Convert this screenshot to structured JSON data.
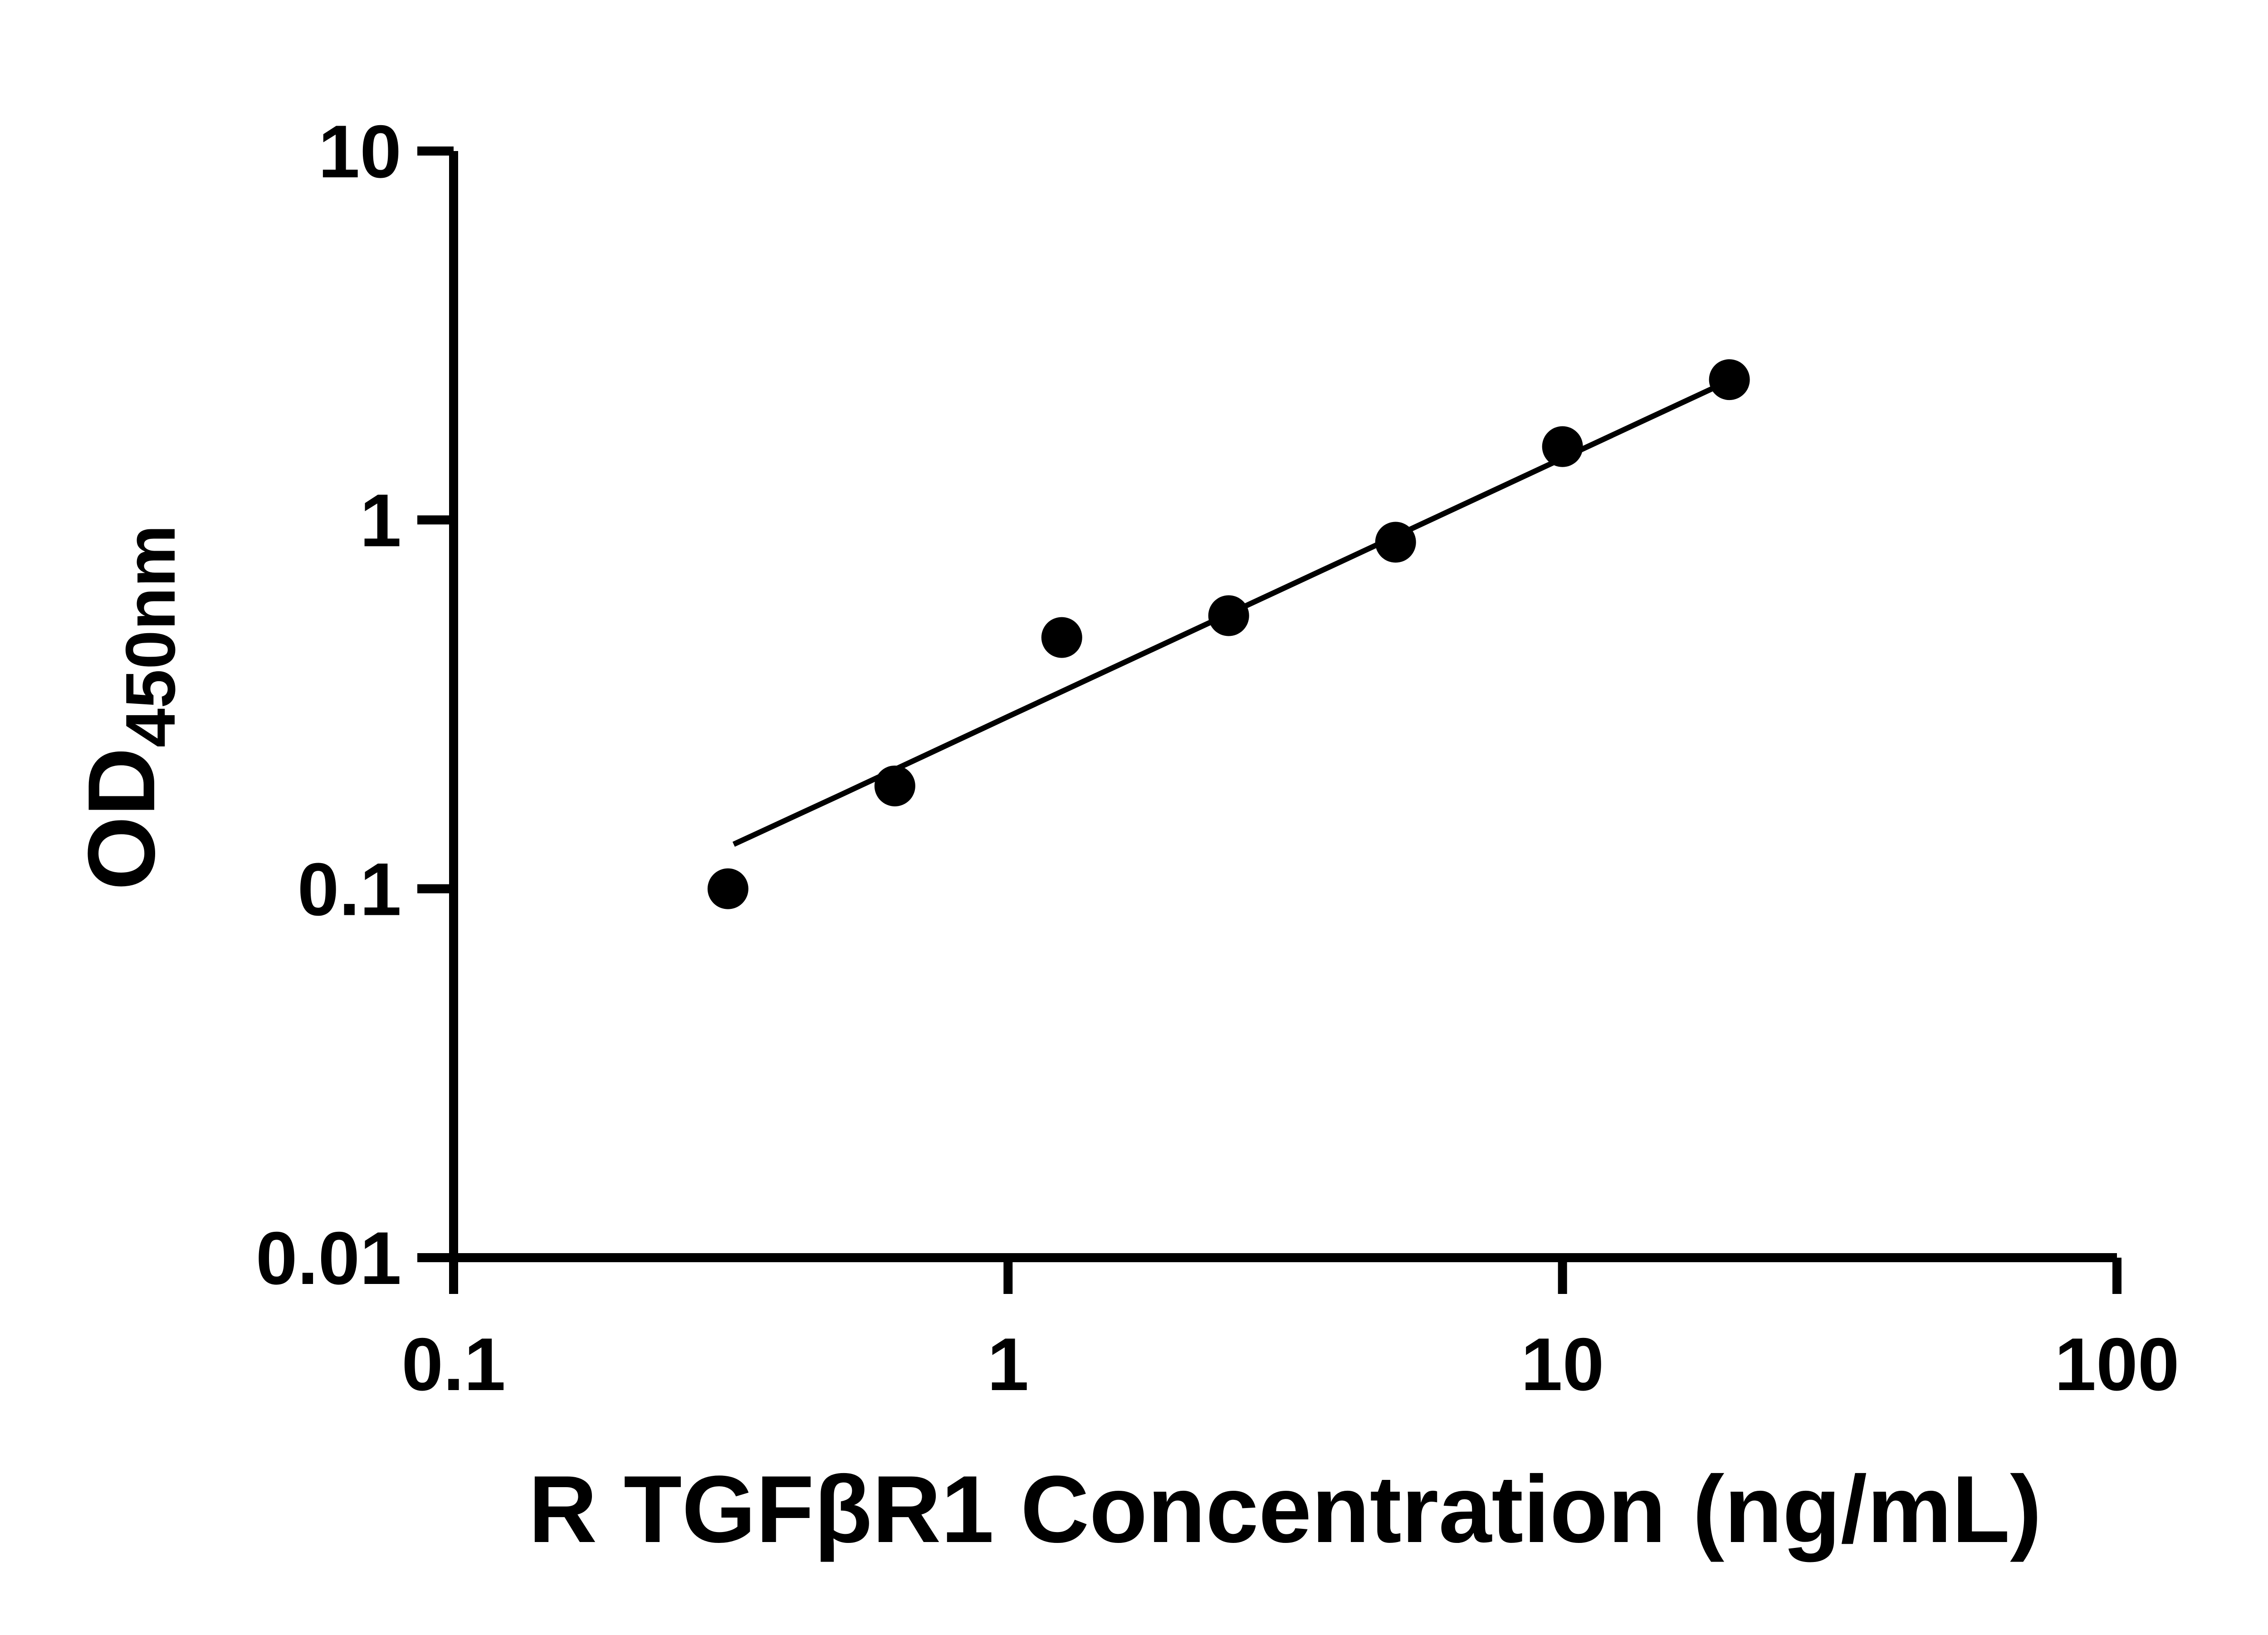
{
  "figure": {
    "background_color": "#ffffff",
    "ink_color": "#000000"
  },
  "chart_data": {
    "type": "scatter",
    "title": "",
    "legend": "none",
    "grid": "off",
    "x_axis": {
      "label": "R TGFβR1 Concentration (ng/mL)",
      "scale": "log",
      "min": 0.1,
      "max": 100,
      "ticks": [
        0.1,
        1,
        10,
        100
      ],
      "tick_labels": [
        "0.1",
        "1",
        "10",
        "100"
      ]
    },
    "y_axis": {
      "label_main": "OD",
      "label_sub": "450nm",
      "scale": "log",
      "min": 0.01,
      "max": 10,
      "ticks": [
        10,
        1,
        0.1,
        0.01
      ],
      "tick_labels": [
        "10",
        "1",
        "0.1",
        "0.01"
      ]
    },
    "series": [
      {
        "name": "fit-line",
        "type": "line",
        "color": "#000000",
        "points": [
          {
            "x": 0.32,
            "y": 0.132
          },
          {
            "x": 0.5,
            "y": 0.18
          },
          {
            "x": 1,
            "y": 0.293
          },
          {
            "x": 2,
            "y": 0.476
          },
          {
            "x": 4,
            "y": 0.773
          },
          {
            "x": 8,
            "y": 1.256
          },
          {
            "x": 14,
            "y": 1.859
          },
          {
            "x": 20,
            "y": 2.385
          }
        ]
      },
      {
        "name": "standard-curve-points",
        "type": "scatter",
        "marker": "filled-circle",
        "color": "#000000",
        "points": [
          {
            "x": 0.3125,
            "y": 0.1
          },
          {
            "x": 0.625,
            "y": 0.19
          },
          {
            "x": 1.25,
            "y": 0.48
          },
          {
            "x": 2.5,
            "y": 0.55
          },
          {
            "x": 5,
            "y": 0.87
          },
          {
            "x": 10,
            "y": 1.58
          },
          {
            "x": 20,
            "y": 2.4
          }
        ]
      }
    ]
  }
}
